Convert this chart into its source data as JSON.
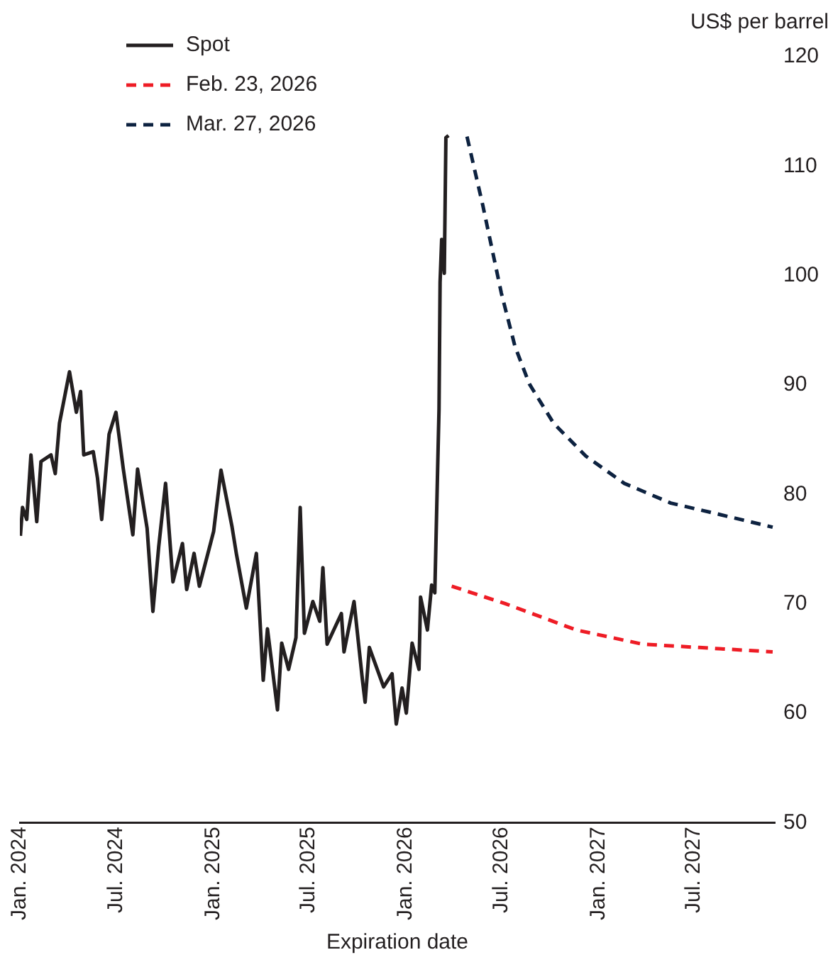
{
  "chart_data": {
    "type": "line",
    "xlabel": "Expiration date",
    "ylabel": "US$ per barrel",
    "xlim": [
      "2024-01-01",
      "2027-12-01"
    ],
    "xticks": [
      {
        "value": "2024-01-01",
        "label": "Jan. 2024"
      },
      {
        "value": "2024-07-01",
        "label": "Jul. 2024"
      },
      {
        "value": "2025-01-01",
        "label": "Jan. 2025"
      },
      {
        "value": "2025-07-01",
        "label": "Jul. 2025"
      },
      {
        "value": "2026-01-01",
        "label": "Jan. 2026"
      },
      {
        "value": "2026-07-01",
        "label": "Jul. 2026"
      },
      {
        "value": "2027-01-01",
        "label": "Jan. 2027"
      },
      {
        "value": "2027-07-01",
        "label": "Jul. 2027"
      }
    ],
    "ylim": [
      50,
      120
    ],
    "yticks": [
      50,
      60,
      70,
      80,
      90,
      100,
      110,
      120
    ],
    "grid": false,
    "legend": "top left",
    "marker": "none",
    "series": [
      {
        "name": "Spot",
        "color": "#231f20",
        "line_style": "solid",
        "x": [
          "2024-01-02",
          "2024-01-06",
          "2024-01-14",
          "2024-01-22",
          "2024-02-02",
          "2024-02-10",
          "2024-02-29",
          "2024-03-08",
          "2024-03-16",
          "2024-04-04",
          "2024-04-17",
          "2024-04-25",
          "2024-05-01",
          "2024-05-19",
          "2024-05-27",
          "2024-06-04",
          "2024-06-18",
          "2024-07-01",
          "2024-07-15",
          "2024-08-02",
          "2024-08-11",
          "2024-08-29",
          "2024-09-09",
          "2024-09-20",
          "2024-10-03",
          "2024-10-17",
          "2024-11-04",
          "2024-11-12",
          "2024-11-26",
          "2024-12-06",
          "2025-01-02",
          "2025-01-16",
          "2025-02-06",
          "2025-02-14",
          "2025-03-05",
          "2025-03-24",
          "2025-04-06",
          "2025-04-14",
          "2025-05-03",
          "2025-05-11",
          "2025-05-24",
          "2025-06-07",
          "2025-06-15",
          "2025-06-23",
          "2025-07-09",
          "2025-07-22",
          "2025-07-28",
          "2025-08-05",
          "2025-09-01",
          "2025-09-06",
          "2025-09-25",
          "2025-10-11",
          "2025-10-16",
          "2025-10-24",
          "2025-11-20",
          "2025-12-06",
          "2025-12-14",
          "2025-12-25",
          "2026-01-02",
          "2026-01-13",
          "2026-01-26",
          "2026-01-29",
          "2026-02-11",
          "2026-02-19",
          "2026-02-25",
          "2026-03-02",
          "2026-03-05",
          "2026-03-07",
          "2026-03-10",
          "2026-03-15",
          "2026-03-18",
          "2026-03-23"
        ],
        "values": [
          76.2,
          78.8,
          77.7,
          83.6,
          77.5,
          83,
          83.6,
          81.9,
          86.5,
          91.2,
          87.5,
          89.4,
          83.6,
          83.9,
          81.5,
          77.7,
          85.5,
          87.5,
          82.3,
          76.3,
          82.3,
          76.9,
          69.3,
          75.2,
          81,
          72,
          75.5,
          71.3,
          74.6,
          71.6,
          76.6,
          82.2,
          77,
          74.6,
          69.6,
          74.6,
          63,
          67.7,
          60.3,
          66.4,
          64,
          66.9,
          78.8,
          67.3,
          70.2,
          68.4,
          73.3,
          66.3,
          69.1,
          65.6,
          70.2,
          63,
          61,
          66,
          62.4,
          63.6,
          59,
          62.3,
          60,
          66.4,
          64,
          70.6,
          67.6,
          71.7,
          71,
          81.6,
          87.8,
          99.4,
          103.3,
          100.2,
          112.6,
          112.8
        ]
      },
      {
        "name": "Feb. 23, 2026",
        "color": "#ee1c25",
        "line_style": "dashed",
        "x": [
          "2026-03-29",
          "2026-07-09",
          "2026-11-20",
          "2027-03-26",
          "2027-07-11",
          "2027-11-27"
        ],
        "values": [
          71.6,
          70,
          67.6,
          66.3,
          66,
          65.6
        ]
      },
      {
        "name": "Mar. 27, 2026",
        "color": "#0d2240",
        "line_style": "dashed",
        "x": [
          "2026-04-27",
          "2026-05-27",
          "2026-07-01",
          "2026-07-27",
          "2026-08-23",
          "2026-10-08",
          "2026-12-08",
          "2027-02-19",
          "2027-05-18",
          "2027-08-15",
          "2027-11-27"
        ],
        "values": [
          112.7,
          106.4,
          98.4,
          93.5,
          90.1,
          86.5,
          83.5,
          81,
          79.2,
          78.2,
          77
        ]
      }
    ]
  }
}
